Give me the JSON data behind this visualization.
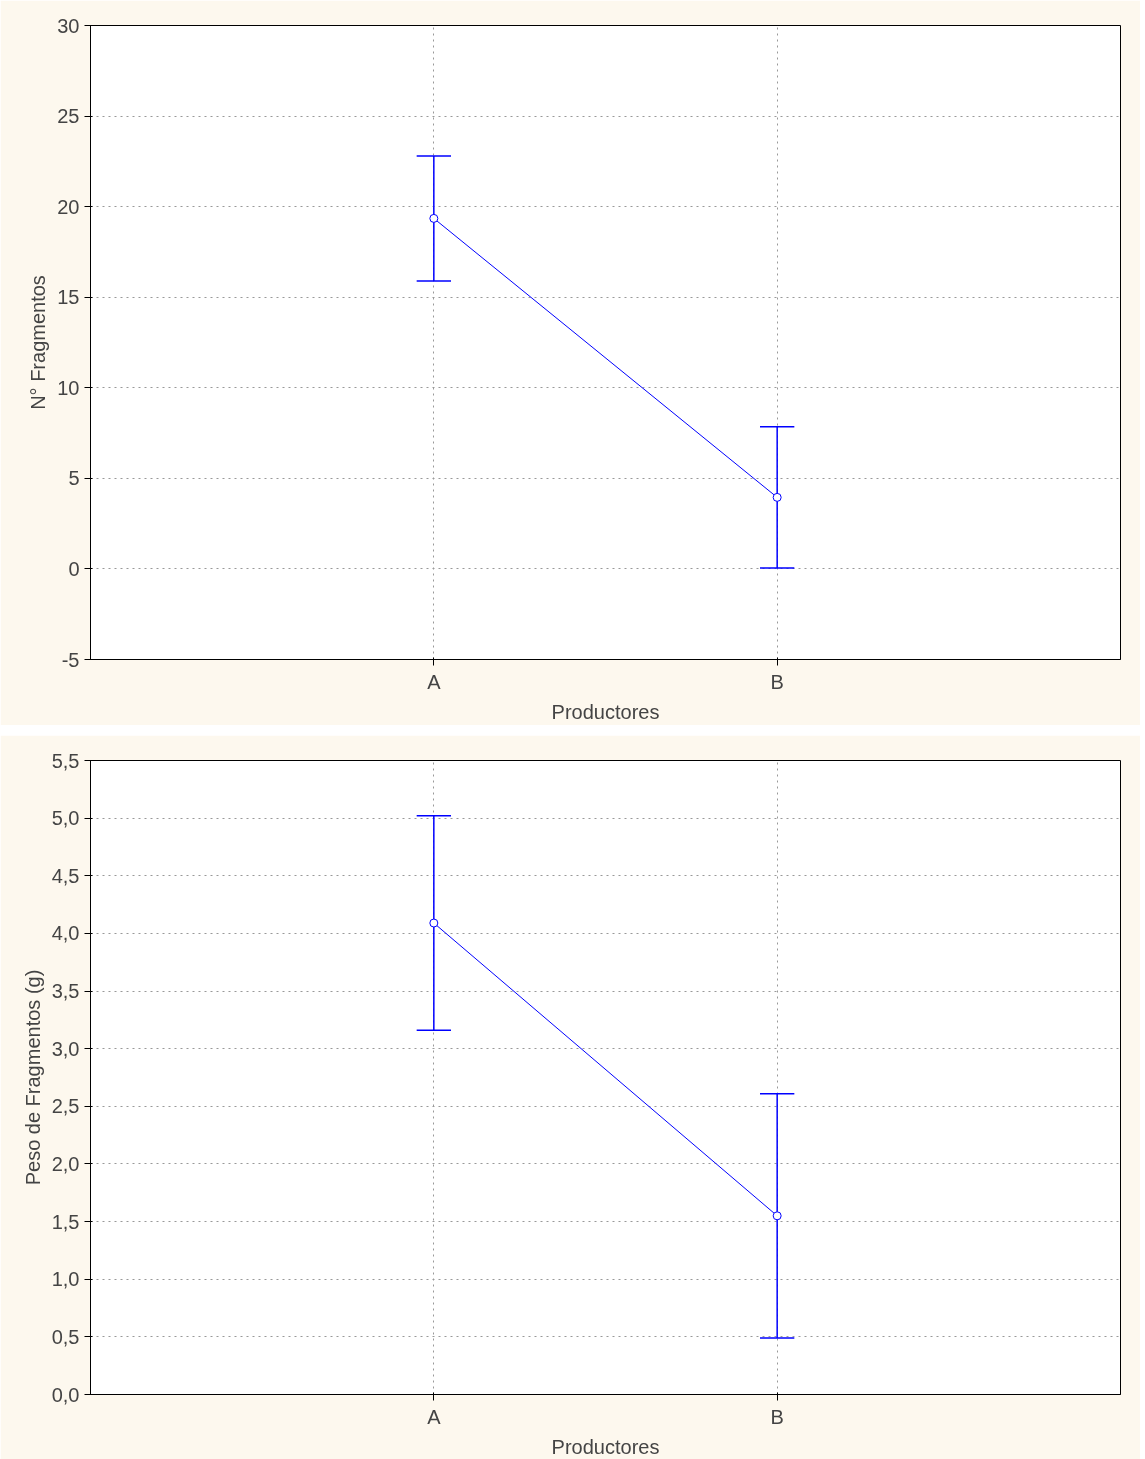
{
  "chart_data": [
    {
      "type": "line",
      "xlabel": "Productores",
      "ylabel": "N° Fragmentos",
      "categories": [
        "A",
        "B"
      ],
      "series": [
        {
          "color": "#0000ff",
          "values": [
            19.35,
            3.95
          ],
          "errors": [
            3.45,
            3.9
          ]
        }
      ],
      "ylim": [
        -5,
        30
      ],
      "yticks": [
        -5,
        0,
        5,
        10,
        15,
        20,
        25,
        30
      ],
      "grid": true,
      "marker": "circle",
      "line_style": "solid"
    },
    {
      "type": "line",
      "xlabel": "Productores",
      "ylabel": "Peso de Fragmentos (g)",
      "categories": [
        "A",
        "B"
      ],
      "series": [
        {
          "color": "#0000ff",
          "values": [
            4.09,
            1.55
          ],
          "errors": [
            0.93,
            1.06
          ]
        }
      ],
      "ylim": [
        0,
        5.5
      ],
      "yticks": [
        {
          "value": 0,
          "label": "0,0"
        },
        {
          "value": 0.5,
          "label": "0,5"
        },
        {
          "value": 1,
          "label": "1,0"
        },
        {
          "value": 1.5,
          "label": "1,5"
        },
        {
          "value": 2,
          "label": "2,0"
        },
        {
          "value": 2.5,
          "label": "2,5"
        },
        {
          "value": 3,
          "label": "3,0"
        },
        {
          "value": 3.5,
          "label": "3,5"
        },
        {
          "value": 4,
          "label": "4,0"
        },
        {
          "value": 4.5,
          "label": "4,5"
        },
        {
          "value": 5,
          "label": "5,0"
        },
        {
          "value": 5.5,
          "label": "5,5"
        }
      ],
      "grid": true,
      "marker": "circle",
      "line_style": "solid"
    }
  ]
}
